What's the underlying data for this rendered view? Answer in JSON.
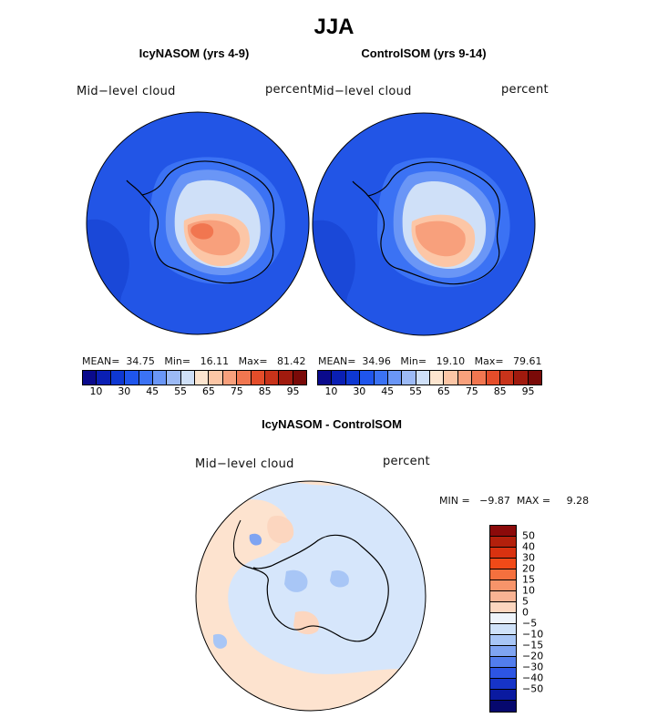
{
  "title": "JJA",
  "panels": [
    {
      "title": "IcyNASOM (yrs 4-9)",
      "variable": "Mid−level cloud",
      "units": "percent",
      "stats": {
        "mean": "34.75",
        "min": "16.11",
        "max": "81.42"
      },
      "stats_text": "MEAN=  34.75   Min=   16.11   Max=   81.42"
    },
    {
      "title": "ControlSOM (yrs 9-14)",
      "variable": "Mid−level cloud",
      "units": "percent",
      "stats": {
        "mean": "34.96",
        "min": "19.10",
        "max": "79.61"
      },
      "stats_text": "MEAN=  34.96   Min=   19.10   Max=   79.61"
    }
  ],
  "colorbar_top": {
    "colors": [
      "#0a0a8c",
      "#0a1fb4",
      "#0e38d2",
      "#1f55ec",
      "#3b72f4",
      "#6a96f6",
      "#9cbaf6",
      "#cfe0f8",
      "#fde5cf",
      "#fcc6a6",
      "#f8a07c",
      "#f17650",
      "#e44d2a",
      "#c8331a",
      "#a01a0e",
      "#7a0a08"
    ],
    "tick_labels": [
      "10",
      "30",
      "45",
      "55",
      "65",
      "75",
      "85",
      "95"
    ]
  },
  "difference": {
    "title": "IcyNASOM - ControlSOM",
    "variable": "Mid−level cloud",
    "units": "percent",
    "stats": {
      "min": "−9.87",
      "max": "9.28"
    },
    "stats_text": "MIN =   −9.87  MAX =     9.28",
    "colorbar": {
      "colors": [
        "#8b0a0a",
        "#b3200c",
        "#d93210",
        "#f14a18",
        "#f5703e",
        "#f7946a",
        "#f9b393",
        "#fcd6bf",
        "#eef4fb",
        "#cfe2f9",
        "#a8c6f6",
        "#7fa4f2",
        "#527ded",
        "#2d55e3",
        "#1634c8",
        "#0a1aa0",
        "#06086e"
      ],
      "labels": [
        "50",
        "40",
        "30",
        "20",
        "15",
        "10",
        "5",
        "0",
        "−5",
        "−10",
        "−15",
        "−20",
        "−30",
        "−40",
        "−50"
      ]
    }
  },
  "colors": {
    "ocean_blue": "#2255e6",
    "ocean_blue_dark": "#1a48d8",
    "diff_blue": "#d6e6fb",
    "diff_pink": "#fde3cf",
    "coast": "#000000"
  }
}
